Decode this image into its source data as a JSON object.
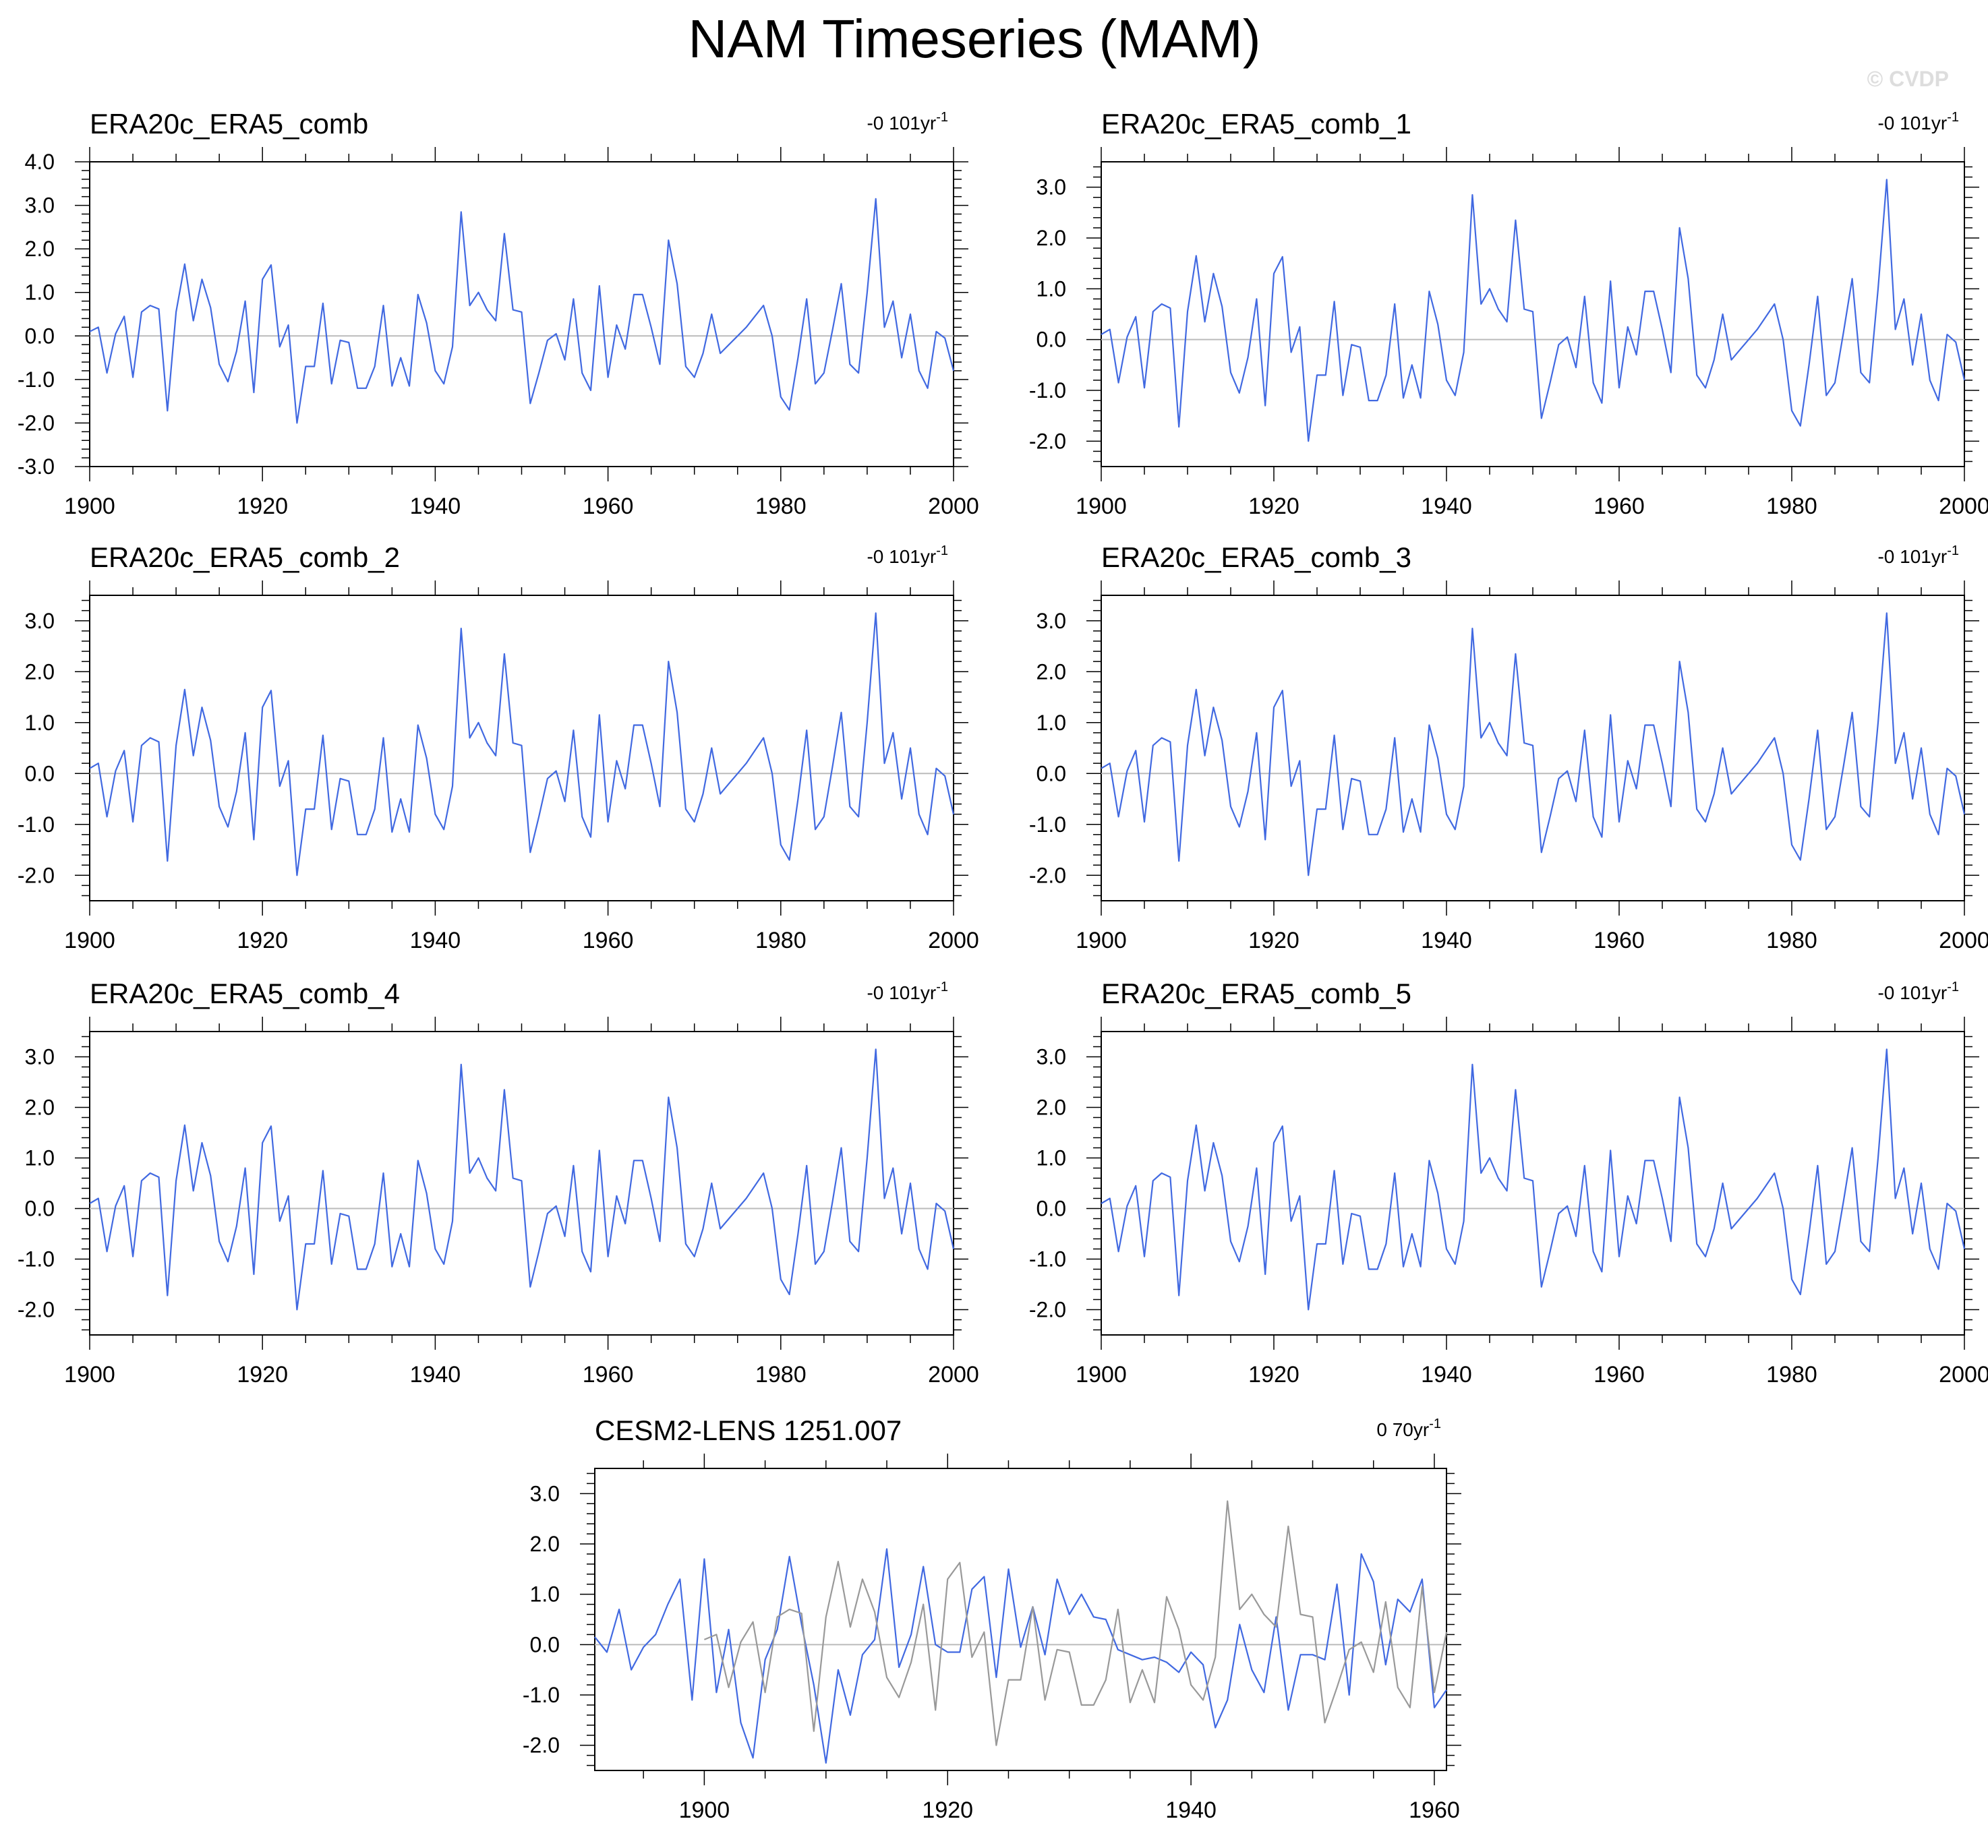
{
  "page_title": "NAM Timeseries (MAM)",
  "watermark": "© CVDP",
  "colors": {
    "series": "#4169e1",
    "observed": "#999999",
    "zero_line": "#bbbbbb",
    "axis": "#000000"
  },
  "chart_data": [
    {
      "type": "line",
      "title": "ERA20c_ERA5_comb",
      "trend_label": "-0 101yr",
      "trend_unit_superscript": "-1",
      "xlim": [
        1900,
        2000
      ],
      "ylim": [
        -3.0,
        4.0
      ],
      "x_ticks": [
        1900,
        1920,
        1940,
        1960,
        1980,
        2000
      ],
      "y_ticks": [
        "-3.0",
        "-2.0",
        "-1.0",
        "0.0",
        "1.0",
        "2.0",
        "3.0",
        "4.0"
      ],
      "series": [
        {
          "x_start": 1900,
          "values_ref": "era"
        }
      ]
    },
    {
      "type": "line",
      "title": "ERA20c_ERA5_comb_1",
      "trend_label": "-0 101yr",
      "trend_unit_superscript": "-1",
      "xlim": [
        1900,
        2000
      ],
      "ylim": [
        -2.5,
        3.5
      ],
      "x_ticks": [
        1900,
        1920,
        1940,
        1960,
        1980,
        2000
      ],
      "y_ticks": [
        "-2.0",
        "-1.0",
        "0.0",
        "1.0",
        "2.0",
        "3.0"
      ],
      "series": [
        {
          "x_start": 1900,
          "values_ref": "era"
        }
      ]
    },
    {
      "type": "line",
      "title": "ERA20c_ERA5_comb_2",
      "trend_label": "-0 101yr",
      "trend_unit_superscript": "-1",
      "xlim": [
        1900,
        2000
      ],
      "ylim": [
        -2.5,
        3.5
      ],
      "x_ticks": [
        1900,
        1920,
        1940,
        1960,
        1980,
        2000
      ],
      "y_ticks": [
        "-2.0",
        "-1.0",
        "0.0",
        "1.0",
        "2.0",
        "3.0"
      ],
      "series": [
        {
          "x_start": 1900,
          "values_ref": "era"
        }
      ]
    },
    {
      "type": "line",
      "title": "ERA20c_ERA5_comb_3",
      "trend_label": "-0 101yr",
      "trend_unit_superscript": "-1",
      "xlim": [
        1900,
        2000
      ],
      "ylim": [
        -2.5,
        3.5
      ],
      "x_ticks": [
        1900,
        1920,
        1940,
        1960,
        1980,
        2000
      ],
      "y_ticks": [
        "-2.0",
        "-1.0",
        "0.0",
        "1.0",
        "2.0",
        "3.0"
      ],
      "series": [
        {
          "x_start": 1900,
          "values_ref": "era"
        }
      ]
    },
    {
      "type": "line",
      "title": "ERA20c_ERA5_comb_4",
      "trend_label": "-0 101yr",
      "trend_unit_superscript": "-1",
      "xlim": [
        1900,
        2000
      ],
      "ylim": [
        -2.5,
        3.5
      ],
      "x_ticks": [
        1900,
        1920,
        1940,
        1960,
        1980,
        2000
      ],
      "y_ticks": [
        "-2.0",
        "-1.0",
        "0.0",
        "1.0",
        "2.0",
        "3.0"
      ],
      "series": [
        {
          "x_start": 1900,
          "values_ref": "era"
        }
      ]
    },
    {
      "type": "line",
      "title": "ERA20c_ERA5_comb_5",
      "trend_label": "-0 101yr",
      "trend_unit_superscript": "-1",
      "xlim": [
        1900,
        2000
      ],
      "ylim": [
        -2.5,
        3.5
      ],
      "x_ticks": [
        1900,
        1920,
        1940,
        1960,
        1980,
        2000
      ],
      "y_ticks": [
        "-2.0",
        "-1.0",
        "0.0",
        "1.0",
        "2.0",
        "3.0"
      ],
      "series": [
        {
          "x_start": 1900,
          "values_ref": "era"
        }
      ]
    },
    {
      "type": "line",
      "title": "CESM2-LENS 1251.007",
      "trend_label": "0 70yr",
      "trend_unit_superscript": "-1",
      "xlim": [
        1891,
        1961
      ],
      "ylim": [
        -2.5,
        3.5
      ],
      "x_ticks": [
        1900,
        1920,
        1940,
        1960
      ],
      "y_ticks": [
        "-2.0",
        "-1.0",
        "0.0",
        "1.0",
        "2.0",
        "3.0"
      ],
      "series": [
        {
          "x_start": 1891,
          "values_ref": "cesm"
        },
        {
          "x_start": 1900,
          "values_ref": "era",
          "color_ref": "observed"
        }
      ]
    }
  ],
  "series_values": {
    "era": [
      0.1,
      0.2,
      -0.85,
      0.05,
      0.45,
      -0.95,
      0.55,
      0.7,
      0.62,
      -1.72,
      0.55,
      1.65,
      0.35,
      1.3,
      0.65,
      -0.65,
      -1.05,
      -0.35,
      0.8,
      -1.3,
      1.3,
      1.63,
      -0.25,
      0.25,
      -2.0,
      -0.7,
      -0.7,
      0.75,
      -1.1,
      -0.1,
      -0.15,
      -1.2,
      -1.2,
      -0.7,
      0.7,
      -1.15,
      -0.5,
      -1.15,
      0.95,
      0.3,
      -0.8,
      -1.1,
      -0.25,
      2.85,
      0.7,
      1.0,
      0.6,
      0.35,
      2.35,
      0.6,
      0.55,
      -1.55,
      -0.85,
      -0.1,
      0.05,
      -0.55,
      0.85,
      -0.85,
      -1.25,
      1.15,
      -0.95,
      0.25,
      -0.3,
      0.95,
      0.95,
      0.2,
      -0.65,
      2.2,
      1.2,
      -0.7,
      -0.95,
      -0.4,
      0.5,
      -0.4,
      -0.2,
      0.0,
      0.2,
      0.45,
      0.7,
      0.0,
      -1.4,
      -1.7,
      -0.5,
      0.85,
      -1.1,
      -0.85,
      0.15,
      1.2,
      -0.65,
      -0.85,
      1.0,
      3.15,
      0.2,
      0.8,
      -0.5,
      0.5,
      -0.8,
      -1.2,
      0.1,
      -0.05,
      -0.8,
      0.15
    ],
    "cesm": [
      0.15,
      -0.15,
      0.7,
      -0.5,
      -0.05,
      0.2,
      0.8,
      1.3,
      -1.1,
      1.7,
      -0.95,
      0.3,
      -1.55,
      -2.25,
      -0.3,
      0.3,
      1.75,
      0.4,
      -0.8,
      -2.35,
      -0.5,
      -1.4,
      -0.2,
      0.1,
      1.9,
      -0.45,
      0.2,
      1.55,
      0.0,
      -0.15,
      -0.15,
      1.1,
      1.35,
      -0.65,
      1.5,
      -0.05,
      0.75,
      -0.2,
      1.3,
      0.6,
      1.0,
      0.55,
      0.5,
      -0.1,
      -0.2,
      -0.3,
      -0.25,
      -0.35,
      -0.55,
      -0.15,
      -0.4,
      -1.65,
      -1.1,
      0.4,
      -0.5,
      -0.95,
      0.55,
      -1.3,
      -0.2,
      -0.2,
      -0.3,
      1.2,
      -1.0,
      1.8,
      1.25,
      -0.4,
      0.9,
      0.65,
      1.3,
      -1.25,
      -0.9,
      -0.5
    ]
  }
}
